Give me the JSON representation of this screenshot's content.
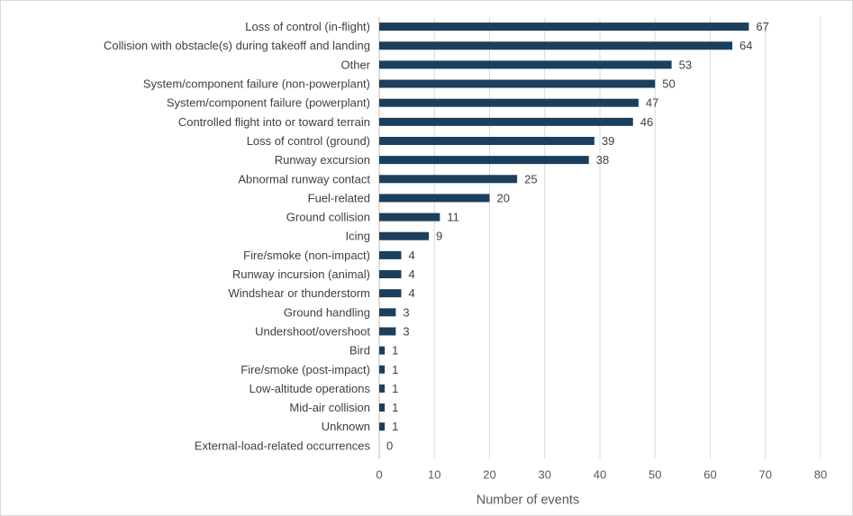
{
  "chart_data": {
    "type": "bar",
    "orientation": "horizontal",
    "title": "",
    "xlabel": "Number of events",
    "ylabel": "",
    "xlim": [
      0,
      80
    ],
    "xticks": [
      0,
      10,
      20,
      30,
      40,
      50,
      60,
      70,
      80
    ],
    "grid": true,
    "legend": "none",
    "bar_color": "#1b3f5c",
    "categories": [
      "Loss of control (in-flight)",
      "Collision with obstacle(s) during takeoff and landing",
      "Other",
      "System/component failure (non-powerplant)",
      "System/component failure (powerplant)",
      "Controlled flight into or toward terrain",
      "Loss of control (ground)",
      "Runway excursion",
      "Abnormal runway contact",
      "Fuel-related",
      "Ground collision",
      "Icing",
      "Fire/smoke (non-impact)",
      "Runway incursion (animal)",
      "Windshear or thunderstorm",
      "Ground handling",
      "Undershoot/overshoot",
      "Bird",
      "Fire/smoke (post-impact)",
      "Low-altitude operations",
      "Mid-air collision",
      "Unknown",
      "External-load-related occurrences"
    ],
    "values": [
      67,
      64,
      53,
      50,
      47,
      46,
      39,
      38,
      25,
      20,
      11,
      9,
      4,
      4,
      4,
      3,
      3,
      1,
      1,
      1,
      1,
      1,
      0
    ]
  }
}
